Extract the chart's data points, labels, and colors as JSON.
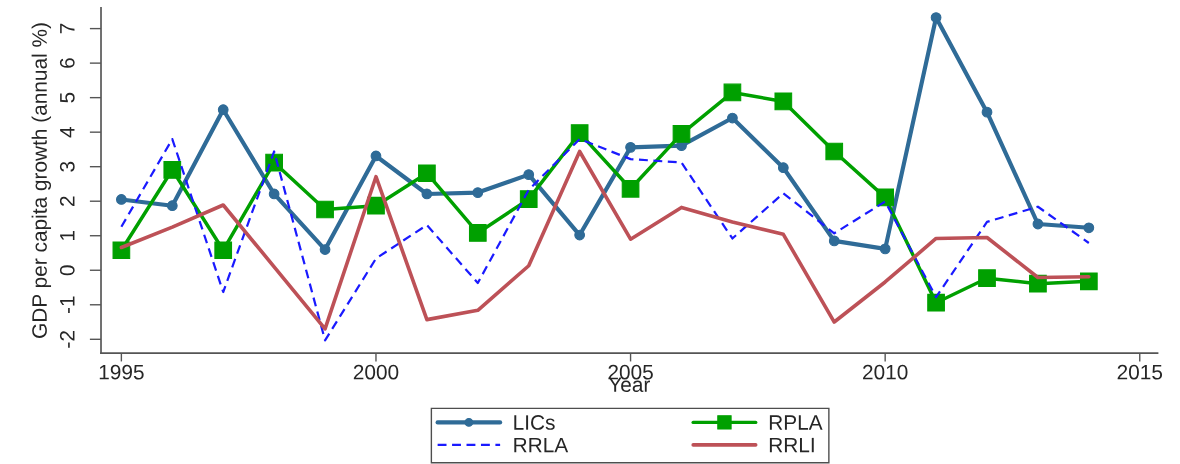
{
  "chart_data": {
    "type": "line",
    "xlabel": "Year",
    "ylabel": "GDP per capita growth (annual %)",
    "x": [
      1995,
      1996,
      1997,
      1998,
      1999,
      2000,
      2001,
      2002,
      2003,
      2004,
      2005,
      2006,
      2007,
      2008,
      2009,
      2010,
      2011,
      2012,
      2013,
      2014
    ],
    "series": [
      {
        "name": "LICs",
        "color": "#2f6b97",
        "marker": "circle",
        "line_style": "solid",
        "values": [
          2.05,
          1.87,
          4.65,
          2.21,
          0.6,
          3.31,
          2.21,
          2.25,
          2.77,
          1.02,
          3.56,
          3.61,
          4.41,
          2.97,
          0.85,
          0.62,
          7.32,
          4.58,
          1.34,
          1.23
        ]
      },
      {
        "name": "RPLA",
        "color": "#00a000",
        "marker": "square",
        "line_style": "solid",
        "values": [
          0.58,
          2.91,
          0.58,
          3.12,
          1.76,
          1.87,
          2.81,
          1.08,
          2.06,
          3.97,
          2.36,
          3.95,
          5.15,
          4.89,
          3.44,
          2.11,
          -0.94,
          -0.23,
          -0.39,
          -0.32
        ]
      },
      {
        "name": "RRLA",
        "color": "#1a1aff",
        "marker": "none",
        "line_style": "dashed",
        "values": [
          1.26,
          3.8,
          -0.63,
          3.44,
          -2.03,
          0.34,
          1.31,
          -0.37,
          2.33,
          3.8,
          3.22,
          3.12,
          0.92,
          2.23,
          1.07,
          1.99,
          -0.78,
          1.4,
          1.84,
          0.79
        ]
      },
      {
        "name": "RRLI",
        "color": "#bd5157",
        "marker": "none",
        "line_style": "solid",
        "values": [
          0.66,
          1.25,
          1.89,
          0.1,
          -1.7,
          2.71,
          -1.43,
          -1.16,
          0.13,
          3.44,
          0.9,
          1.82,
          1.4,
          1.04,
          -1.5,
          -0.34,
          0.92,
          0.95,
          -0.21,
          -0.19
        ]
      }
    ],
    "xlim": [
      1994.6,
      2015.35
    ],
    "ylim": [
      -2.4,
      7.6
    ],
    "xticks": [
      1995,
      2000,
      2005,
      2010,
      2015
    ],
    "yticks": [
      -2,
      -1,
      0,
      1,
      2,
      3,
      4,
      5,
      6,
      7
    ],
    "grid": false,
    "legend": "bottom"
  }
}
